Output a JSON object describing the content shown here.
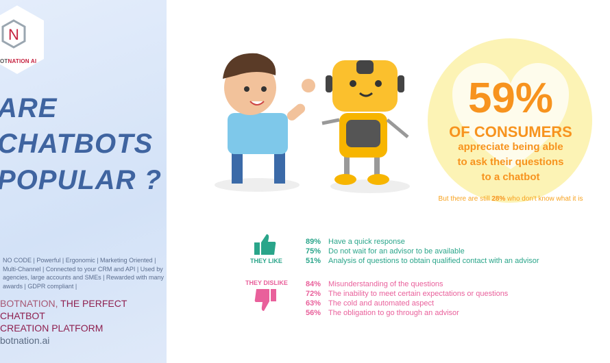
{
  "brand": {
    "logo_letter": "N",
    "logo_text_a": "OT",
    "logo_text_b": "NATION AI"
  },
  "title": [
    "ARE",
    "CHATBOTS",
    "POPULAR ?"
  ],
  "features": "NO CODE | Powerful | Ergonomic | Marketing Oriented | Multi-Channel | Connected to your CRM and API | Used by agencies, large accounts and SMEs | Rewarded with many awards | GDPR compliant |",
  "tagline": {
    "brand": "BOTNATION,",
    "rest": "THE PERFECT CHATBOT",
    "line2": "CREATION PLATFORM"
  },
  "website": "botnation.ai",
  "stat": {
    "value": "59%",
    "headline": "OF CONSUMERS",
    "line1": "appreciate being able",
    "line2": "to ask their questions",
    "line3": "to a chatbot"
  },
  "note": {
    "pre": "But there are still",
    "pct": "28%",
    "post": "who don't know what it is"
  },
  "likes": {
    "label": "THEY LIKE",
    "items": [
      {
        "pct": "89%",
        "text": "Have a quick response"
      },
      {
        "pct": "75%",
        "text": "Do not wait for an advisor to be available"
      },
      {
        "pct": "51%",
        "text": "Analysis of questions to obtain qualified contact with an advisor"
      }
    ]
  },
  "dislikes": {
    "label": "THEY DISLIKE",
    "items": [
      {
        "pct": "84%",
        "text": "Misunderstanding of the questions"
      },
      {
        "pct": "72%",
        "text": "The inability to meet certain expectations or questions"
      },
      {
        "pct": "63%",
        "text": "The cold and automated aspect"
      },
      {
        "pct": "56%",
        "text": "The obligation to go through an advisor"
      }
    ]
  },
  "colors": {
    "title": "#3f64a0",
    "orange": "#f7931e",
    "like": "#2aa58a",
    "dislike": "#e9609b"
  }
}
